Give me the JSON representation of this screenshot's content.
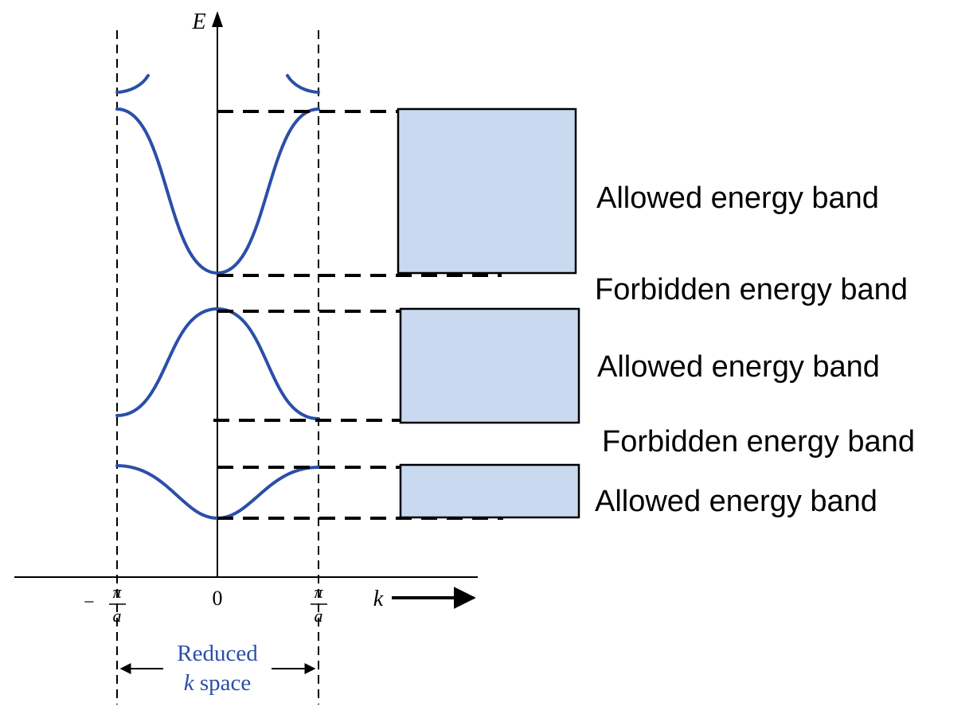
{
  "colors": {
    "curve": "#2a4fa8",
    "band_fill": "#c9d9f0",
    "ink": "#000000",
    "caption": "#2a4fa8"
  },
  "axes": {
    "y_label": "E",
    "x_label": "k",
    "origin_label": "0",
    "left_tick_sign": "−",
    "pi": "π",
    "a": "a"
  },
  "reduced_space": {
    "line1": "Reduced",
    "line2_k": "k",
    "line2_rest": " space"
  },
  "bands": [
    {
      "label": "Allowed energy band",
      "kind": "allowed"
    },
    {
      "label": "Forbidden energy band",
      "kind": "forbidden"
    },
    {
      "label": "Allowed energy band",
      "kind": "allowed"
    },
    {
      "label": "Forbidden energy band",
      "kind": "forbidden"
    },
    {
      "label": "Allowed energy band",
      "kind": "allowed"
    }
  ]
}
